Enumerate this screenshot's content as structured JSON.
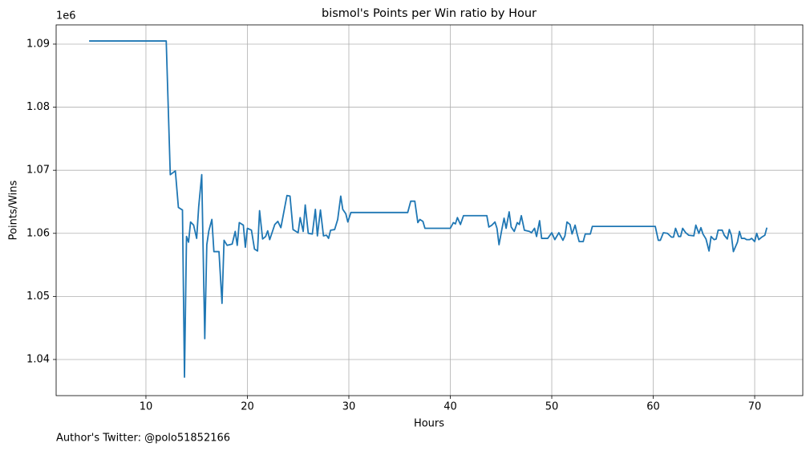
{
  "chart_data": {
    "type": "line",
    "title": "bismol's Points per Win ratio by Hour",
    "x_label": "Hours",
    "y_label": "Points/Wins",
    "y_offset_label": "1e6",
    "footnote": "Author's Twitter: @polo51852166",
    "x": [
      4.4,
      12.0,
      12.4,
      12.9,
      13.2,
      13.6,
      13.8,
      14.0,
      14.2,
      14.4,
      14.7,
      15.0,
      15.2,
      15.5,
      15.8,
      16.0,
      16.2,
      16.5,
      16.7,
      17.2,
      17.5,
      17.7,
      18.0,
      18.5,
      18.8,
      19.0,
      19.2,
      19.6,
      19.8,
      20.0,
      20.4,
      20.7,
      21.0,
      21.2,
      21.5,
      21.8,
      22.0,
      22.2,
      22.7,
      23.0,
      23.3,
      23.9,
      24.2,
      24.5,
      25.0,
      25.2,
      25.5,
      25.7,
      26.0,
      26.4,
      26.7,
      26.9,
      27.2,
      27.5,
      27.8,
      28.0,
      28.2,
      28.6,
      28.9,
      29.2,
      29.4,
      29.7,
      29.9,
      30.2,
      35.8,
      36.1,
      36.5,
      36.8,
      37.0,
      37.3,
      37.5,
      40.0,
      40.3,
      40.5,
      40.7,
      41.0,
      41.3,
      43.6,
      43.8,
      44.1,
      44.4,
      44.6,
      44.8,
      45.1,
      45.3,
      45.5,
      45.8,
      46.0,
      46.3,
      46.6,
      46.8,
      47.0,
      47.3,
      47.8,
      48.0,
      48.3,
      48.5,
      48.8,
      49.0,
      49.6,
      50.0,
      50.3,
      50.7,
      51.1,
      51.3,
      51.5,
      51.8,
      52.0,
      52.3,
      52.5,
      52.7,
      53.1,
      53.3,
      53.8,
      54.0,
      60.2,
      60.5,
      60.7,
      61.0,
      61.4,
      61.8,
      62.0,
      62.2,
      62.5,
      62.7,
      62.9,
      63.2,
      63.5,
      64.0,
      64.2,
      64.5,
      64.7,
      64.9,
      65.2,
      65.5,
      65.7,
      66.0,
      66.2,
      66.4,
      66.8,
      67.0,
      67.3,
      67.5,
      67.7,
      67.9,
      68.3,
      68.5,
      68.7,
      69.0,
      69.2,
      69.5,
      69.7,
      70.0,
      70.2,
      70.4,
      70.7,
      71.0,
      71.2
    ],
    "series": [
      {
        "color": "#1f77b4",
        "values": [
          1.0905,
          1.0905,
          1.0693,
          1.0699,
          1.0641,
          1.0637,
          1.0372,
          1.0595,
          1.0586,
          1.0618,
          1.0613,
          1.0592,
          1.0642,
          1.0693,
          1.0433,
          1.0582,
          1.0604,
          1.0622,
          1.0571,
          1.0571,
          1.0489,
          1.0589,
          1.0581,
          1.0583,
          1.0603,
          1.0581,
          1.0617,
          1.0613,
          1.0578,
          1.0608,
          1.0605,
          1.0575,
          1.0572,
          1.0636,
          1.0591,
          1.0595,
          1.0604,
          1.059,
          1.0614,
          1.0619,
          1.0609,
          1.066,
          1.0659,
          1.0606,
          1.0601,
          1.0625,
          1.0603,
          1.0645,
          1.06,
          1.0599,
          1.0638,
          1.0596,
          1.0637,
          1.0596,
          1.0597,
          1.0592,
          1.0605,
          1.0606,
          1.0622,
          1.0659,
          1.0638,
          1.0631,
          1.0618,
          1.0633,
          1.0633,
          1.0651,
          1.0651,
          1.0617,
          1.0622,
          1.0619,
          1.0608,
          1.0608,
          1.0617,
          1.0615,
          1.0625,
          1.0614,
          1.0628,
          1.0628,
          1.061,
          1.0613,
          1.0618,
          1.0608,
          1.0582,
          1.0608,
          1.0624,
          1.0608,
          1.0634,
          1.061,
          1.0603,
          1.0617,
          1.0614,
          1.0628,
          1.0605,
          1.0603,
          1.0601,
          1.0608,
          1.0595,
          1.062,
          1.0592,
          1.0592,
          1.0601,
          1.059,
          1.0601,
          1.0589,
          1.0596,
          1.0618,
          1.0614,
          1.0599,
          1.0613,
          1.0599,
          1.0587,
          1.0587,
          1.0599,
          1.0599,
          1.0611,
          1.0611,
          1.0589,
          1.0589,
          1.0601,
          1.06,
          1.0594,
          1.0594,
          1.0608,
          1.0595,
          1.0595,
          1.0608,
          1.0601,
          1.0597,
          1.0596,
          1.0613,
          1.06,
          1.0609,
          1.0599,
          1.0591,
          1.0572,
          1.0595,
          1.059,
          1.0591,
          1.0605,
          1.0605,
          1.0597,
          1.0591,
          1.0606,
          1.0597,
          1.0571,
          1.0586,
          1.0603,
          1.0592,
          1.0592,
          1.059,
          1.059,
          1.0592,
          1.0587,
          1.06,
          1.059,
          1.0594,
          1.0597,
          1.0609
        ]
      }
    ],
    "xlim": [
      1.15,
      74.74
    ],
    "ylim": [
      1.03427,
      1.09305
    ],
    "xticks": [
      10,
      20,
      30,
      40,
      50,
      60,
      70
    ],
    "yticks": [
      1.04,
      1.05,
      1.06,
      1.07,
      1.08,
      1.09
    ],
    "grid": true
  }
}
